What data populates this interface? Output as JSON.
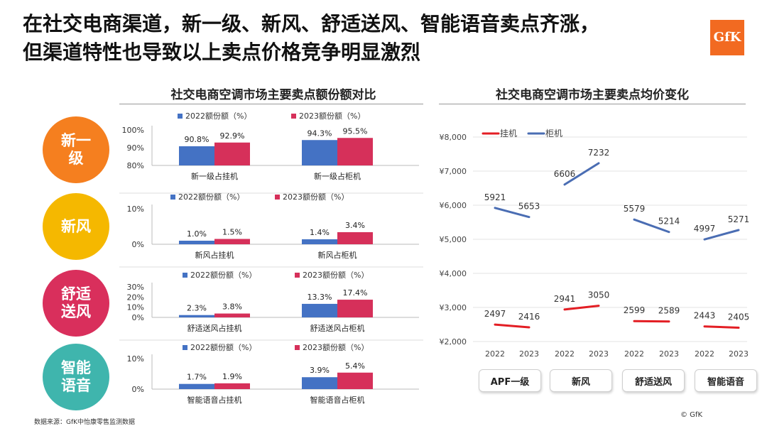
{
  "header": {
    "title_line1": "在社交电商渠道，新一级、新风、舒适送风、智能语音卖点齐涨，",
    "title_line2": "但渠道特性也导致以上卖点价格竞争明显激烈",
    "logo_text": "GfK"
  },
  "colors": {
    "series_2022": "#4472c4",
    "series_2023": "#d6305a",
    "guaju": "#e31e24",
    "guiji": "#4a6db3"
  },
  "chart_data": [
    {
      "type": "bar",
      "title": "社交电商空调市场主要卖点额份额对比",
      "groups": [
        {
          "label": "新一级",
          "color": "#f57f1f",
          "ylim": [
            80,
            100
          ],
          "yticks": [
            "100%",
            "90%",
            "80%"
          ],
          "legend": [
            "2022额份额（%）",
            "2023额份额（%）"
          ],
          "categories": [
            "新一级占挂机",
            "新一级占柜机"
          ],
          "series": [
            {
              "name": "2022额份额（%）",
              "values": [
                90.8,
                94.3
              ],
              "labels": [
                "90.8%",
                "94.3%"
              ]
            },
            {
              "name": "2023额份额（%）",
              "values": [
                92.9,
                95.5
              ],
              "labels": [
                "92.9%",
                "95.5%"
              ]
            }
          ]
        },
        {
          "label": "新风",
          "color": "#f5b800",
          "ylim": [
            0,
            10
          ],
          "yticks": [
            "10%",
            "0%"
          ],
          "legend": [
            "2022额份额（%）",
            "2023额份额（%）"
          ],
          "categories": [
            "新风占挂机",
            "新风占柜机"
          ],
          "series": [
            {
              "name": "2022额份额（%）",
              "values": [
                1.0,
                1.4
              ],
              "labels": [
                "1.0%",
                "1.4%"
              ]
            },
            {
              "name": "2023额份额（%）",
              "values": [
                1.5,
                3.4
              ],
              "labels": [
                "1.5%",
                "3.4%"
              ]
            }
          ]
        },
        {
          "label": "舒适送风",
          "color": "#d92f5c",
          "ylim": [
            0,
            30
          ],
          "yticks": [
            "30%",
            "20%",
            "10%",
            "0%"
          ],
          "legend": [
            "2022额份额（%）",
            "2023额份额（%）"
          ],
          "categories": [
            "舒适送风占挂机",
            "舒适送风占柜机"
          ],
          "series": [
            {
              "name": "2022额份额（%）",
              "values": [
                2.3,
                13.3
              ],
              "labels": [
                "2.3%",
                "13.3%"
              ]
            },
            {
              "name": "2023额份额（%）",
              "values": [
                3.8,
                17.4
              ],
              "labels": [
                "3.8%",
                "17.4%"
              ]
            }
          ]
        },
        {
          "label": "智能语音",
          "color": "#3fb5ad",
          "ylim": [
            0,
            10
          ],
          "yticks": [
            "10%",
            "0%"
          ],
          "legend": [
            "2022额份额（%）",
            "2023额份额（%）"
          ],
          "categories": [
            "智能语音占挂机",
            "智能语音占柜机"
          ],
          "series": [
            {
              "name": "2022额份额（%）",
              "values": [
                1.7,
                3.9
              ],
              "labels": [
                "1.7%",
                "3.9%"
              ]
            },
            {
              "name": "2023额份额（%）",
              "values": [
                1.9,
                5.4
              ],
              "labels": [
                "1.9%",
                "5.4%"
              ]
            }
          ]
        }
      ]
    },
    {
      "type": "line",
      "title": "社交电商空调市场主要卖点均价变化",
      "ylim": [
        2000,
        8000
      ],
      "yticks": [
        "¥8,000",
        "¥7,000",
        "¥6,000",
        "¥5,000",
        "¥4,000",
        "¥3,000",
        "¥2,000"
      ],
      "ytick_values": [
        8000,
        7000,
        6000,
        5000,
        4000,
        3000,
        2000
      ],
      "grid": true,
      "legend_position": "top-left",
      "categories": [
        "APF一级",
        "新风",
        "舒适送风",
        "智能语音"
      ],
      "x": [
        "2022",
        "2023"
      ],
      "series": [
        {
          "name": "挂机",
          "color": "#e31e24",
          "values": [
            [
              2497,
              2416
            ],
            [
              2941,
              3050
            ],
            [
              2599,
              2589
            ],
            [
              2443,
              2405
            ]
          ]
        },
        {
          "name": "柜机",
          "color": "#4a6db3",
          "values": [
            [
              5921,
              5653
            ],
            [
              6606,
              7232
            ],
            [
              5579,
              5214
            ],
            [
              4997,
              5271
            ]
          ]
        }
      ]
    }
  ],
  "footer": {
    "source": "数据来源：GfK中怡康零售监测数据",
    "copyright": "© GfK"
  }
}
